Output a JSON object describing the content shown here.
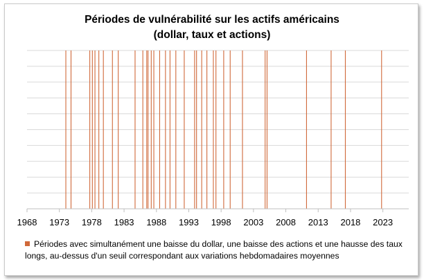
{
  "chart_data": {
    "type": "bar",
    "title_line1": "Périodes de vulnérabilité sur les actifs américains",
    "title_line2": "(dollar, taux et actions)",
    "xlabel": "",
    "ylabel": "",
    "x_ticks": [
      "1968",
      "1973",
      "1978",
      "1983",
      "1988",
      "1993",
      "1998",
      "2003",
      "2008",
      "2013",
      "2018",
      "2023"
    ],
    "x_range": [
      1968,
      2027
    ],
    "events_year": [
      1974.0,
      1974.8,
      1977.7,
      1978.1,
      1978.5,
      1979.1,
      1979.8,
      1981.2,
      1982.1,
      1984.7,
      1985.9,
      1986.5,
      1986.7,
      1987.2,
      1987.6,
      1988.5,
      1989.4,
      1990.1,
      1991.0,
      1992.3,
      1993.9,
      1994.2,
      1995.0,
      1995.8,
      1996.8,
      1997.2,
      1998.4,
      1999.4,
      2001.3,
      2004.8,
      2005.1,
      2011.2,
      2015.0,
      2017.2,
      2022.8
    ],
    "grid": true,
    "legend_position": "bottom",
    "legend": "Périodes avec simultanément une baisse du dollar, une baisse des actions et une hausse des taux longs, au-dessus d'un seuil correspondant aux variations hebdomadaires moyennes",
    "colors": {
      "event": "#D0693A",
      "grid": "#d9d9d9",
      "axis": "#bfbfbf"
    }
  }
}
